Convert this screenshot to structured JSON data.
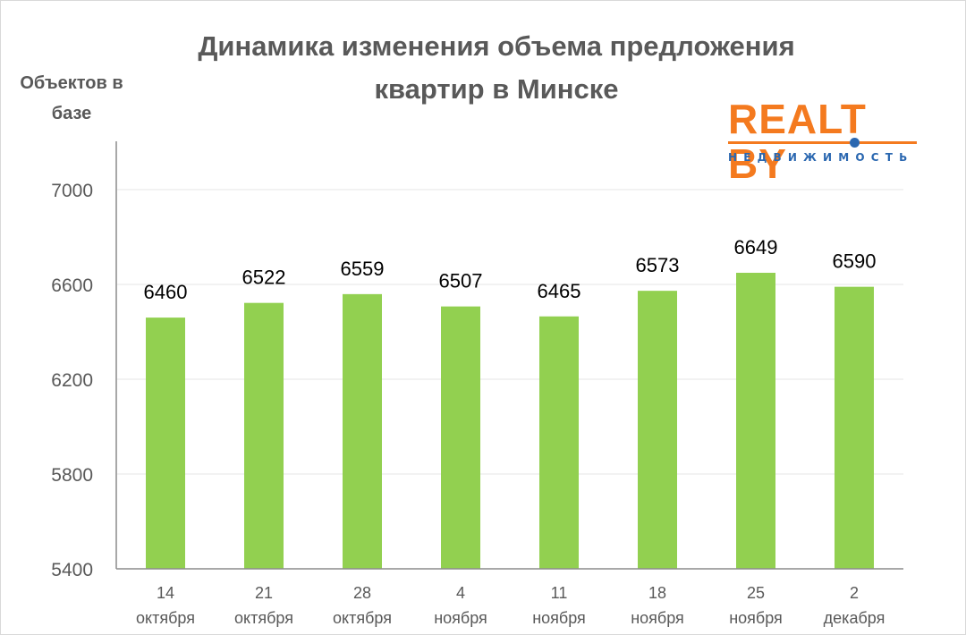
{
  "colors": {
    "bar": "#92d050",
    "grid": "#e6e6e6",
    "axis": "#8c8c8c",
    "text": "#595959",
    "logo_orange": "#f47a1f",
    "logo_blue": "#2a67b0"
  },
  "logo": {
    "brand": "REALT BY",
    "tagline": "НЕДВИЖИМОСТЬ"
  },
  "chart_data": {
    "type": "bar",
    "title_lines": [
      "Динамика изменения объема предложения",
      "квартир в Минске"
    ],
    "ylabel_lines": [
      "Объектов в",
      "базе"
    ],
    "xlabel": "",
    "categories": [
      [
        "14",
        "октября"
      ],
      [
        "21",
        "октября"
      ],
      [
        "28",
        "октября"
      ],
      [
        "4",
        "ноября"
      ],
      [
        "11",
        "ноября"
      ],
      [
        "18",
        "ноября"
      ],
      [
        "25",
        "ноября"
      ],
      [
        "2",
        "декабря"
      ]
    ],
    "values": [
      6460,
      6522,
      6559,
      6507,
      6465,
      6573,
      6649,
      6590
    ],
    "ylim": [
      5400,
      7000
    ],
    "yticks": [
      5400,
      5800,
      6200,
      6600,
      7000
    ],
    "grid": true,
    "legend": "none",
    "data_labels": true
  }
}
